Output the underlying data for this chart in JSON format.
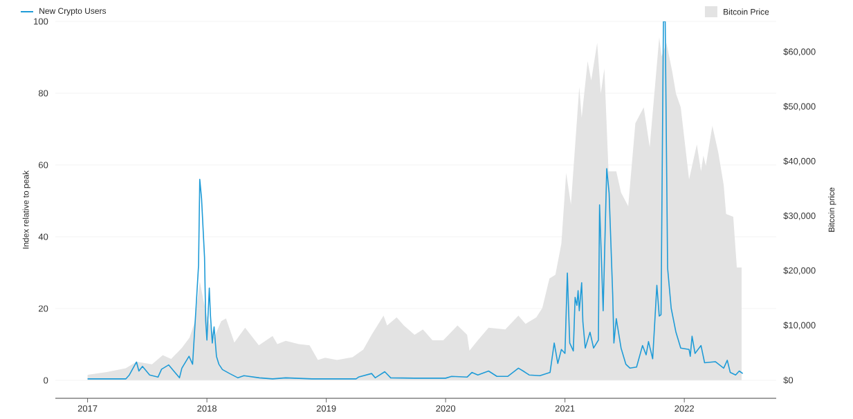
{
  "chart_data": {
    "type": "line",
    "ylabel": "Index relative to peak",
    "y2label": "Bitcoin price",
    "xlim": [
      2016.73,
      2022.77
    ],
    "xticks": [
      2017,
      2018,
      2019,
      2020,
      2021,
      2022
    ],
    "ylim": [
      -5,
      100
    ],
    "yticks": [
      0,
      20,
      40,
      60,
      80,
      100
    ],
    "y2lim": [
      -3300,
      65600
    ],
    "y2ticks": [
      {
        "value": 0,
        "label": "$0"
      },
      {
        "value": 10000,
        "label": "$10,000"
      },
      {
        "value": 20000,
        "label": "$20,000"
      },
      {
        "value": 30000,
        "label": "$30,000"
      },
      {
        "value": 40000,
        "label": "$40,000"
      },
      {
        "value": 50000,
        "label": "$50,000"
      },
      {
        "value": 60000,
        "label": "$60,000"
      }
    ],
    "grid": "y",
    "legend": "top",
    "series": [
      {
        "name": "New Crypto Users",
        "type": "line",
        "color": "#1e9bd7",
        "x": [
          2017.0,
          2017.32,
          2017.35,
          2017.41,
          2017.43,
          2017.46,
          2017.52,
          2017.59,
          2017.62,
          2017.68,
          2017.77,
          2017.79,
          2017.85,
          2017.88,
          2017.91,
          2017.93,
          2017.94,
          2017.955,
          2017.98,
          2017.99,
          2018.0,
          2018.02,
          2018.03,
          2018.045,
          2018.06,
          2018.08,
          2018.1,
          2018.13,
          2018.19,
          2018.26,
          2018.31,
          2018.44,
          2018.55,
          2018.66,
          2018.88,
          2019.06,
          2019.25,
          2019.27,
          2019.38,
          2019.41,
          2019.49,
          2019.54,
          2019.74,
          2020.0,
          2020.05,
          2020.18,
          2020.22,
          2020.27,
          2020.36,
          2020.43,
          2020.52,
          2020.61,
          2020.65,
          2020.7,
          2020.79,
          2020.875,
          2020.91,
          2020.94,
          2020.97,
          2021.0,
          2021.02,
          2021.04,
          2021.07,
          2021.085,
          2021.1,
          2021.11,
          2021.12,
          2021.14,
          2021.15,
          2021.17,
          2021.21,
          2021.24,
          2021.28,
          2021.29,
          2021.32,
          2021.35,
          2021.37,
          2021.4,
          2021.41,
          2021.43,
          2021.47,
          2021.51,
          2021.545,
          2021.6,
          2021.65,
          2021.68,
          2021.7,
          2021.735,
          2021.77,
          2021.79,
          2021.805,
          2021.825,
          2021.84,
          2021.86,
          2021.89,
          2021.93,
          2021.97,
          2022.04,
          2022.05,
          2022.065,
          2022.09,
          2022.14,
          2022.17,
          2022.26,
          2022.33,
          2022.36,
          2022.385,
          2022.43,
          2022.46,
          2022.49
        ],
        "values": [
          0.4,
          0.4,
          1.5,
          5.1,
          2.6,
          3.9,
          1.5,
          0.9,
          3.1,
          4.3,
          0.7,
          3.4,
          6.7,
          4.5,
          20.9,
          32.1,
          56.0,
          50.7,
          34.3,
          16.4,
          11.2,
          25.7,
          17.9,
          10.4,
          14.9,
          6.7,
          4.5,
          3.0,
          1.9,
          0.7,
          1.3,
          0.7,
          0.4,
          0.7,
          0.4,
          0.4,
          0.4,
          0.9,
          1.9,
          0.7,
          2.4,
          0.7,
          0.6,
          0.6,
          1.1,
          0.9,
          2.2,
          1.5,
          2.6,
          1.1,
          1.1,
          3.4,
          2.6,
          1.5,
          1.3,
          2.2,
          10.4,
          4.7,
          8.6,
          7.5,
          29.9,
          10.4,
          8.2,
          23.1,
          20.9,
          25.0,
          19.4,
          27.2,
          16.4,
          9.0,
          13.4,
          9.0,
          11.2,
          48.9,
          19.4,
          59.0,
          52.2,
          23.9,
          10.4,
          17.2,
          9.0,
          4.5,
          3.4,
          3.7,
          9.7,
          7.1,
          10.8,
          6.0,
          26.5,
          17.9,
          18.3,
          100,
          100,
          31.3,
          20.1,
          13.4,
          9.0,
          8.6,
          6.7,
          12.3,
          7.5,
          9.7,
          4.9,
          5.2,
          3.4,
          5.6,
          2.2,
          1.5,
          2.6,
          1.9
        ]
      },
      {
        "name": "Bitcoin Price",
        "type": "area",
        "axis": "y2",
        "color": "#e3e3e3",
        "x": [
          2017.0,
          2017.16,
          2017.32,
          2017.41,
          2017.54,
          2017.63,
          2017.7,
          2017.79,
          2017.855,
          2017.9,
          2017.94,
          2017.97,
          2018.0,
          2018.06,
          2018.12,
          2018.16,
          2018.23,
          2018.32,
          2018.435,
          2018.55,
          2018.59,
          2018.66,
          2018.77,
          2018.86,
          2018.93,
          2018.99,
          2019.09,
          2019.22,
          2019.31,
          2019.38,
          2019.48,
          2019.51,
          2019.59,
          2019.65,
          2019.74,
          2019.81,
          2019.89,
          2019.98,
          2020.1,
          2020.18,
          2020.2,
          2020.27,
          2020.36,
          2020.5,
          2020.61,
          2020.67,
          2020.76,
          2020.81,
          2020.87,
          2020.92,
          2020.97,
          2021.01,
          2021.05,
          2021.12,
          2021.14,
          2021.19,
          2021.22,
          2021.27,
          2021.3,
          2021.33,
          2021.365,
          2021.43,
          2021.47,
          2021.53,
          2021.59,
          2021.66,
          2021.71,
          2021.79,
          2021.81,
          2021.85,
          2021.9,
          2021.93,
          2021.97,
          2022.04,
          2022.105,
          2022.14,
          2022.16,
          2022.18,
          2022.235,
          2022.285,
          2022.33,
          2022.35,
          2022.41,
          2022.44,
          2022.48
        ],
        "values": [
          1000,
          1500,
          2200,
          3400,
          2900,
          4600,
          3900,
          5900,
          7800,
          10800,
          18100,
          14700,
          11800,
          7800,
          10800,
          11300,
          6900,
          9600,
          6400,
          8100,
          6600,
          7200,
          6600,
          6400,
          3700,
          4100,
          3700,
          4200,
          5600,
          8300,
          11800,
          10000,
          11500,
          10000,
          8300,
          9300,
          7300,
          7300,
          10000,
          8300,
          5400,
          7300,
          9600,
          9300,
          11800,
          10300,
          11500,
          13200,
          18600,
          19300,
          25000,
          37900,
          32100,
          53600,
          48000,
          58300,
          54800,
          61700,
          52400,
          57000,
          38200,
          38200,
          34300,
          31800,
          47000,
          49900,
          42600,
          62700,
          59200,
          61700,
          56300,
          52400,
          49900,
          36700,
          43100,
          38200,
          41100,
          39200,
          46500,
          41600,
          35700,
          30400,
          29900,
          20600,
          20600
        ]
      }
    ]
  }
}
